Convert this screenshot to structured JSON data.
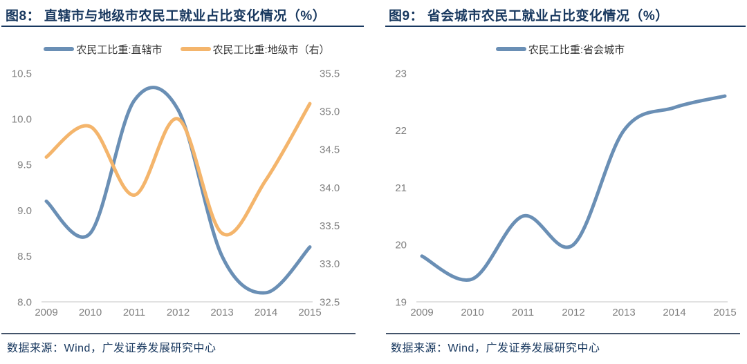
{
  "source_note": "数据来源：Wind，广发证券发展研究中心",
  "colors": {
    "brand_navy": "#17375e",
    "axis_text": "#7f7f7f",
    "axis_baseline": "#d9d9d9",
    "series_blue": "#6a8fb5",
    "series_orange": "#f4b56c"
  },
  "chart_data": [
    {
      "type": "line",
      "title": "图8： 直辖市与地级市农民工就业占比变化情况（%）",
      "categories": [
        "2009",
        "2010",
        "2011",
        "2012",
        "2013",
        "2014",
        "2015"
      ],
      "series": [
        {
          "name": "农民工比重:直辖市",
          "axis": "left",
          "color": "#6a8fb5",
          "values": [
            9.1,
            8.75,
            10.2,
            10.1,
            8.5,
            8.1,
            8.6
          ]
        },
        {
          "name": "农民工比重:地级市（右）",
          "axis": "right",
          "color": "#f4b56c",
          "values": [
            34.4,
            34.8,
            33.9,
            34.9,
            33.4,
            34.1,
            35.1
          ]
        }
      ],
      "left_axis": {
        "min": 8.0,
        "max": 10.5,
        "ticks": [
          "10.5",
          "10.0",
          "9.5",
          "9.0",
          "8.5",
          "8.0"
        ]
      },
      "right_axis": {
        "min": 32.5,
        "max": 35.5,
        "ticks": [
          "35.5",
          "35.0",
          "34.5",
          "34.0",
          "33.5",
          "33.0",
          "32.5"
        ]
      },
      "legend_position": "top",
      "grid": "bottom baseline only",
      "smooth": true
    },
    {
      "type": "line",
      "title": "图9： 省会城市农民工就业占比变化情况（%）",
      "categories": [
        "2009",
        "2010",
        "2011",
        "2012",
        "2013",
        "2014",
        "2015"
      ],
      "series": [
        {
          "name": "农民工比重:省会城市",
          "axis": "left",
          "color": "#6a8fb5",
          "values": [
            19.8,
            19.4,
            20.5,
            20.0,
            22.0,
            22.4,
            22.6
          ]
        }
      ],
      "left_axis": {
        "min": 19,
        "max": 23,
        "ticks": [
          "23",
          "22",
          "21",
          "20",
          "19"
        ]
      },
      "legend_position": "top",
      "grid": "bottom baseline only",
      "smooth": true
    }
  ]
}
